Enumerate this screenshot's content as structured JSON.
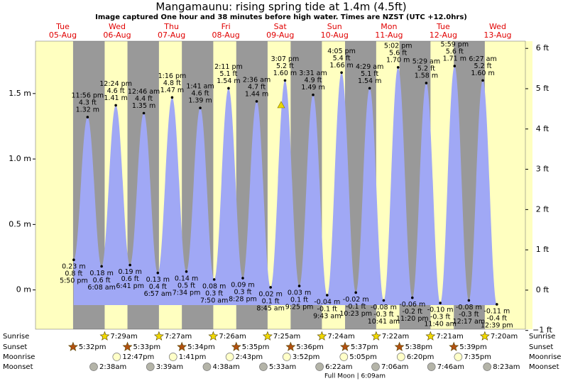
{
  "chart_data": {
    "type": "area",
    "title": "Mangamaunu: rising  spring tide at 1.4m (4.5ft)",
    "subtitle": "Image captured One hour and 38 minutes before high water. Times are NZST (UTC +12.0hrs)",
    "ylim": [
      -0.3,
      1.9
    ],
    "yticks": [
      {
        "value": 0,
        "label": "0 m"
      },
      {
        "value": 0.5,
        "label": "0.5 m"
      },
      {
        "value": 1.0,
        "label": "1.0 m"
      },
      {
        "value": 1.5,
        "label": "1.5 m"
      }
    ],
    "y2lim": [
      -0.97,
      6.18
    ],
    "y2ticks": [
      {
        "value": -1,
        "label": "−1 ft"
      },
      {
        "value": 0,
        "label": "0 ft"
      },
      {
        "value": 1,
        "label": "1 ft"
      },
      {
        "value": 2,
        "label": "2 ft"
      },
      {
        "value": 3,
        "label": "3 ft"
      },
      {
        "value": 4,
        "label": "4 ft"
      },
      {
        "value": 5,
        "label": "5 ft"
      },
      {
        "value": 6,
        "label": "6 ft"
      }
    ],
    "color": "#a0a8f5",
    "day_color": "#ffffc0",
    "night_color": "#999999",
    "row_labels": [
      "Sunrise",
      "Sunset",
      "Moonrise",
      "Moonset"
    ],
    "full_moon": "Full Moon | 6:09am",
    "days": [
      {
        "weekday": "Tue",
        "date": "05-Aug",
        "sunset": "5:32pm",
        "tides": [
          {
            "time": "5:50 pm",
            "height": 0.23,
            "height_label": "0.23 m",
            "feet_label": "0.8 ft"
          },
          {
            "time": "11:56 pm",
            "height": 1.32,
            "height_label": "1.32 m",
            "feet_label": "4.3 ft"
          }
        ]
      },
      {
        "weekday": "Wed",
        "date": "06-Aug",
        "sunrise": "7:29am",
        "sunset": "5:33pm",
        "moonrise": "12:47pm",
        "moonset": "2:38am",
        "tides": [
          {
            "time": "6:08 am",
            "height": 0.18,
            "height_label": "0.18 m",
            "feet_label": "0.6 ft"
          },
          {
            "time": "12:24 pm",
            "height": 1.41,
            "height_label": "1.41 m",
            "feet_label": "4.6 ft"
          },
          {
            "time": "6:41 pm",
            "height": 0.19,
            "height_label": "0.19 m",
            "feet_label": "0.6 ft"
          }
        ]
      },
      {
        "weekday": "Thu",
        "date": "07-Aug",
        "sunrise": "7:27am",
        "sunset": "5:34pm",
        "moonrise": "1:41pm",
        "moonset": "3:39am",
        "tides": [
          {
            "time": "12:46 am",
            "height": 1.35,
            "height_label": "1.35 m",
            "feet_label": "4.4 ft"
          },
          {
            "time": "6:57 am",
            "height": 0.13,
            "height_label": "0.13 m",
            "feet_label": "0.4 ft"
          },
          {
            "time": "1:16 pm",
            "height": 1.47,
            "height_label": "1.47 m",
            "feet_label": "4.8 ft"
          },
          {
            "time": "7:34 pm",
            "height": 0.14,
            "height_label": "0.14 m",
            "feet_label": "0.5 ft"
          }
        ]
      },
      {
        "weekday": "Fri",
        "date": "08-Aug",
        "sunrise": "7:26am",
        "sunset": "5:35pm",
        "moonrise": "2:43pm",
        "moonset": "4:38am",
        "tides": [
          {
            "time": "1:41 am",
            "height": 1.39,
            "height_label": "1.39 m",
            "feet_label": "4.6 ft"
          },
          {
            "time": "7:50 am",
            "height": 0.08,
            "height_label": "0.08 m",
            "feet_label": "0.3 ft"
          },
          {
            "time": "2:11 pm",
            "height": 1.54,
            "height_label": "1.54 m",
            "feet_label": "5.1 ft"
          },
          {
            "time": "8:28 pm",
            "height": 0.09,
            "height_label": "0.09 m",
            "feet_label": "0.3 ft"
          }
        ]
      },
      {
        "weekday": "Sat",
        "date": "09-Aug",
        "sunrise": "7:25am",
        "sunset": "5:36pm",
        "moonrise": "3:52pm",
        "moonset": "5:33am",
        "tides": [
          {
            "time": "2:36 am",
            "height": 1.44,
            "height_label": "1.44 m",
            "feet_label": "4.7 ft"
          },
          {
            "time": "8:45 am",
            "height": 0.02,
            "height_label": "0.02 m",
            "feet_label": "0.1 ft"
          },
          {
            "time": "3:07 pm",
            "height": 1.6,
            "height_label": "1.60 m",
            "feet_label": "5.2 ft"
          },
          {
            "time": "9:25 pm",
            "height": 0.03,
            "height_label": "0.03 m",
            "feet_label": "0.1 ft"
          }
        ]
      },
      {
        "weekday": "Sun",
        "date": "10-Aug",
        "sunrise": "7:24am",
        "sunset": "5:37pm",
        "moonrise": "5:05pm",
        "moonset": "6:22am",
        "tides": [
          {
            "time": "3:31 am",
            "height": 1.49,
            "height_label": "1.49 m",
            "feet_label": "4.9 ft"
          },
          {
            "time": "9:43 am",
            "height": -0.04,
            "height_label": "-0.04 m",
            "feet_label": "-0.1 ft"
          },
          {
            "time": "4:05 pm",
            "height": 1.66,
            "height_label": "1.66 m",
            "feet_label": "5.4 ft"
          },
          {
            "time": "10:23 pm",
            "height": -0.02,
            "height_label": "-0.02 m",
            "feet_label": "-0.1 ft"
          }
        ]
      },
      {
        "weekday": "Mon",
        "date": "11-Aug",
        "sunrise": "7:22am",
        "sunset": "5:38pm",
        "moonrise": "6:20pm",
        "moonset": "7:06am",
        "tides": [
          {
            "time": "4:29 am",
            "height": 1.54,
            "height_label": "1.54 m",
            "feet_label": "5.1 ft"
          },
          {
            "time": "10:41 am",
            "height": -0.08,
            "height_label": "-0.08 m",
            "feet_label": "-0.3 ft"
          },
          {
            "time": "5:02 pm",
            "height": 1.7,
            "height_label": "1.70 m",
            "feet_label": "5.6 ft"
          },
          {
            "time": "11:20 pm",
            "height": -0.06,
            "height_label": "-0.06 m",
            "feet_label": "-0.2 ft"
          }
        ]
      },
      {
        "weekday": "Tue",
        "date": "12-Aug",
        "sunrise": "7:21am",
        "sunset": "5:39pm",
        "moonrise": "7:35pm",
        "moonset": "7:46am",
        "tides": [
          {
            "time": "5:29 am",
            "height": 1.58,
            "height_label": "1.58 m",
            "feet_label": "5.2 ft"
          },
          {
            "time": "11:40 am",
            "height": -0.1,
            "height_label": "-0.10 m",
            "feet_label": "-0.3 ft"
          },
          {
            "time": "5:59 pm",
            "height": 1.71,
            "height_label": "1.71 m",
            "feet_label": "5.6 ft"
          }
        ]
      },
      {
        "weekday": "Wed",
        "date": "13-Aug",
        "sunrise": "7:20am",
        "moonset": "8:23am",
        "tides": [
          {
            "time": "12:17 am",
            "height": -0.08,
            "height_label": "-0.08 m",
            "feet_label": "-0.3 ft"
          },
          {
            "time": "6:27 am",
            "height": 1.6,
            "height_label": "1.60 m",
            "feet_label": "5.2 ft"
          },
          {
            "time": "12:39 pm",
            "height": -0.11,
            "height_label": "-0.11 m",
            "feet_label": "-0.4 ft"
          }
        ]
      }
    ]
  }
}
